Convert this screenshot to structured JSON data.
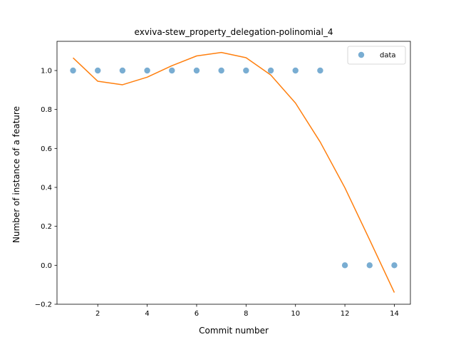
{
  "chart_data": {
    "type": "scatter",
    "title": "exviva-stew_property_delegation-polinomial_4",
    "xlabel": "Commit number",
    "ylabel": "Number of instance of a feature",
    "xlim": [
      0.35,
      14.65
    ],
    "ylim": [
      -0.2,
      1.15
    ],
    "x_ticks": [
      2,
      4,
      6,
      8,
      10,
      12,
      14
    ],
    "x_tick_labels": [
      "2",
      "4",
      "6",
      "8",
      "10",
      "12",
      "14"
    ],
    "y_ticks": [
      -0.2,
      0.0,
      0.2,
      0.4,
      0.6,
      0.8,
      1.0
    ],
    "y_tick_labels": [
      "−0.2",
      "0.0",
      "0.2",
      "0.4",
      "0.6",
      "0.8",
      "1.0"
    ],
    "grid": false,
    "legend_position": "top-right",
    "series": [
      {
        "name": "data",
        "kind": "scatter",
        "color": "#1f77b4",
        "x": [
          1,
          2,
          3,
          4,
          5,
          6,
          7,
          8,
          9,
          10,
          11,
          12,
          13,
          14
        ],
        "y": [
          1,
          1,
          1,
          1,
          1,
          1,
          1,
          1,
          1,
          1,
          1,
          0,
          0,
          0
        ]
      },
      {
        "kind": "line",
        "color": "#ff7f0e",
        "x": [
          1,
          2,
          3,
          4,
          5,
          6,
          7,
          8,
          9,
          10,
          11,
          12,
          13,
          14
        ],
        "y": [
          1.065,
          0.945,
          0.927,
          0.966,
          1.025,
          1.075,
          1.093,
          1.066,
          0.977,
          0.833,
          0.633,
          0.398,
          0.131,
          -0.14
        ]
      }
    ]
  }
}
